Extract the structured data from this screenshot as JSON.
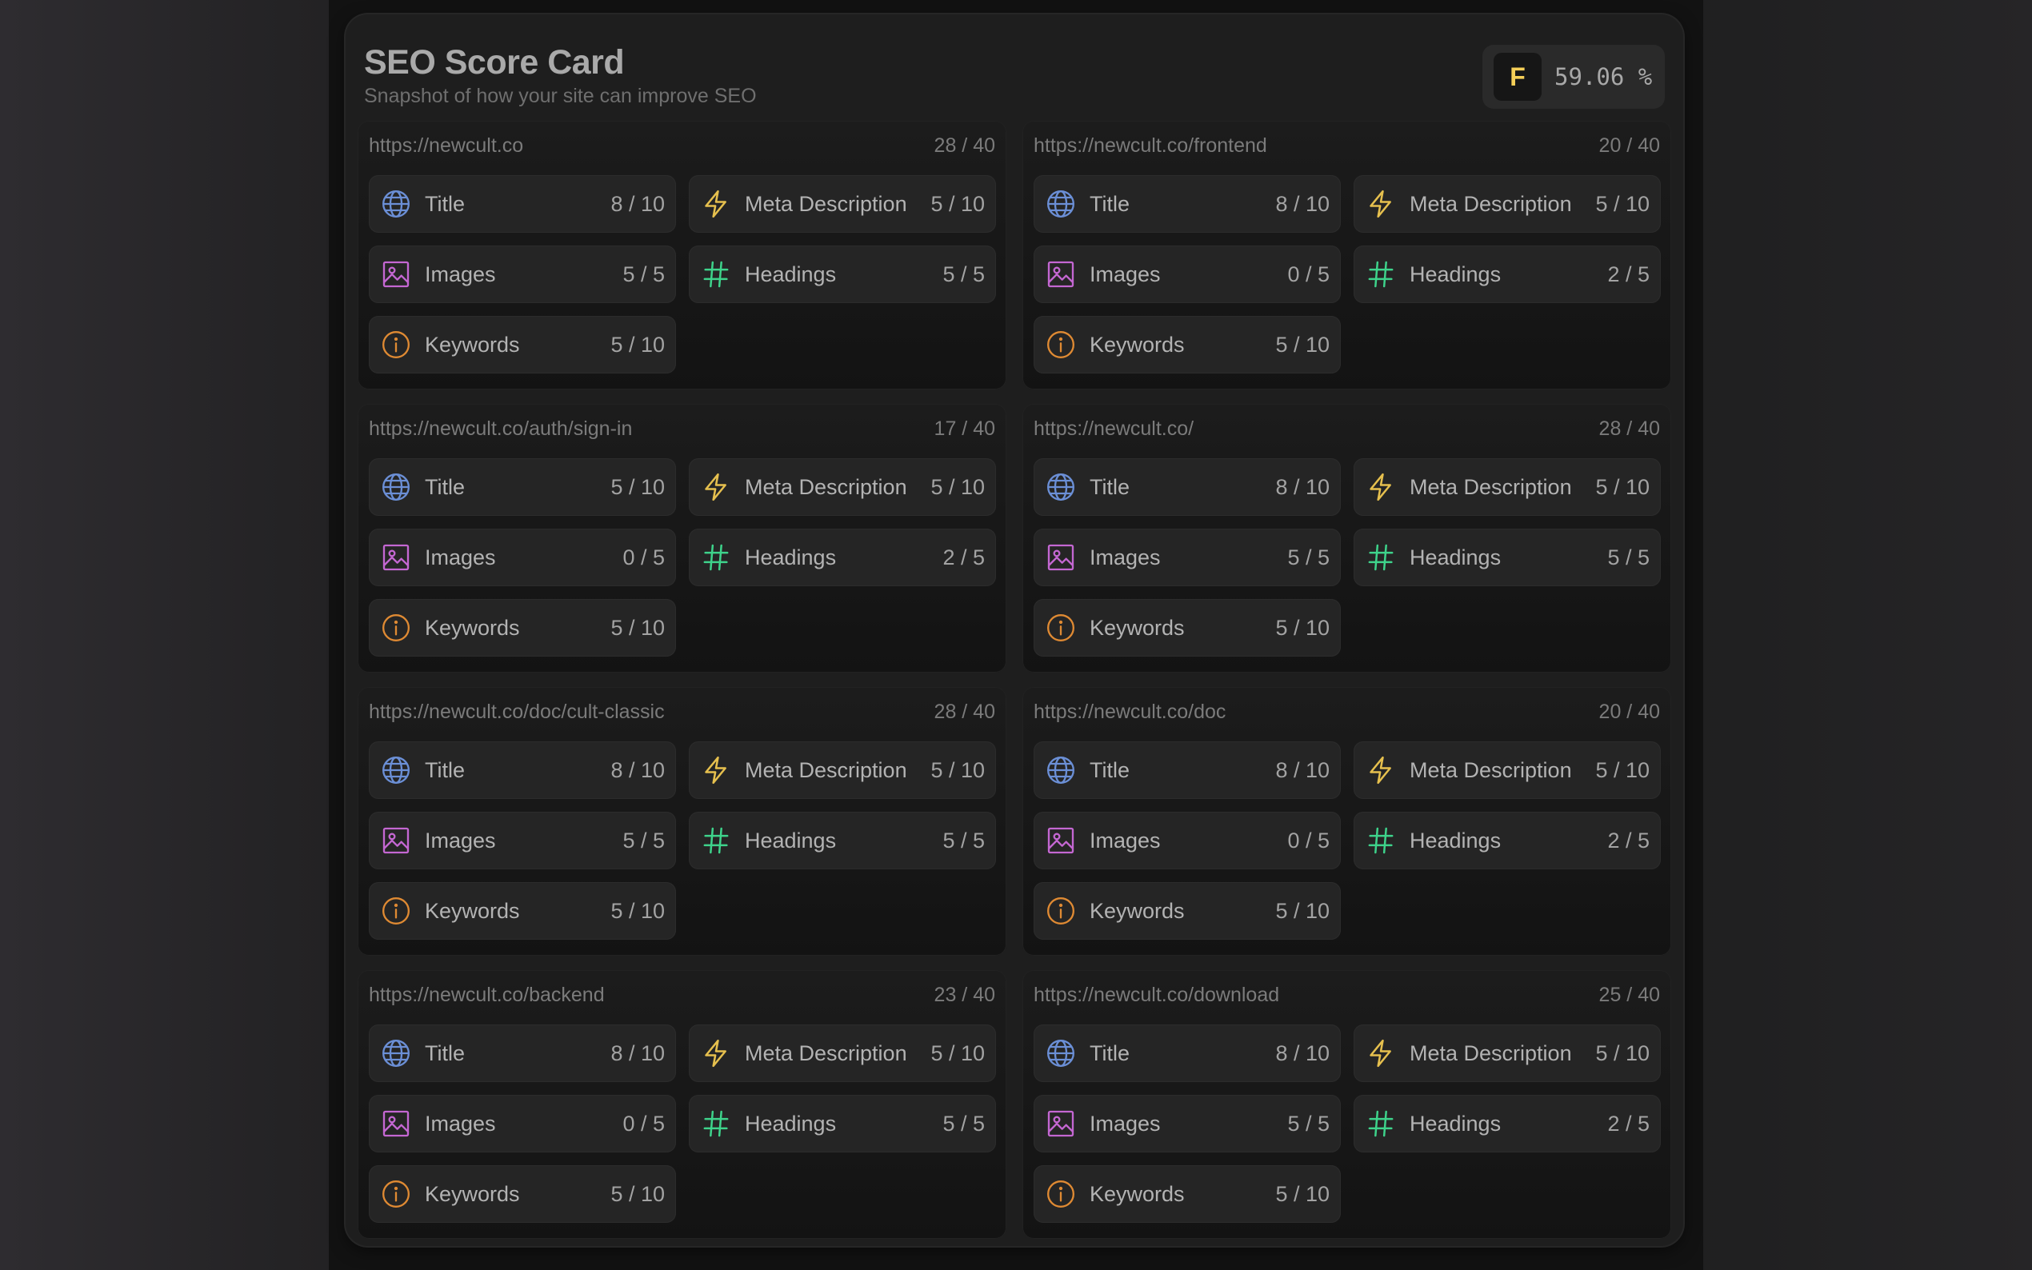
{
  "header": {
    "title": "SEO Score Card",
    "subtitle": "Snapshot of how your site can improve SEO",
    "grade": "F",
    "percentage": "59.06 %"
  },
  "labels": {
    "title": "Title",
    "meta": "Meta Description",
    "images": "Images",
    "headings": "Headings",
    "keywords": "Keywords"
  },
  "icons": {
    "title": "globe-icon",
    "meta": "lightning-icon",
    "images": "image-icon",
    "headings": "hash-icon",
    "keywords": "info-icon"
  },
  "colors": {
    "title_icon": "#6b8fd6",
    "meta_icon": "#e6c04e",
    "images_icon": "#c467d2",
    "headings_icon": "#3ed38b",
    "keywords_icon": "#df8a33",
    "grade_letter": "#f5cf58"
  },
  "pages": [
    {
      "url": "https://newcult.co",
      "total": "28 / 40",
      "title": "8 / 10",
      "meta": "5 / 10",
      "images": "5 / 5",
      "headings": "5 / 5",
      "keywords": "5 / 10"
    },
    {
      "url": "https://newcult.co/frontend",
      "total": "20 / 40",
      "title": "8 / 10",
      "meta": "5 / 10",
      "images": "0 / 5",
      "headings": "2 / 5",
      "keywords": "5 / 10"
    },
    {
      "url": "https://newcult.co/auth/sign-in",
      "total": "17 / 40",
      "title": "5 / 10",
      "meta": "5 / 10",
      "images": "0 / 5",
      "headings": "2 / 5",
      "keywords": "5 / 10"
    },
    {
      "url": "https://newcult.co/",
      "total": "28 / 40",
      "title": "8 / 10",
      "meta": "5 / 10",
      "images": "5 / 5",
      "headings": "5 / 5",
      "keywords": "5 / 10"
    },
    {
      "url": "https://newcult.co/doc/cult-classic",
      "total": "28 / 40",
      "title": "8 / 10",
      "meta": "5 / 10",
      "images": "5 / 5",
      "headings": "5 / 5",
      "keywords": "5 / 10"
    },
    {
      "url": "https://newcult.co/doc",
      "total": "20 / 40",
      "title": "8 / 10",
      "meta": "5 / 10",
      "images": "0 / 5",
      "headings": "2 / 5",
      "keywords": "5 / 10"
    },
    {
      "url": "https://newcult.co/backend",
      "total": "23 / 40",
      "title": "8 / 10",
      "meta": "5 / 10",
      "images": "0 / 5",
      "headings": "5 / 5",
      "keywords": "5 / 10"
    },
    {
      "url": "https://newcult.co/download",
      "total": "25 / 40",
      "title": "8 / 10",
      "meta": "5 / 10",
      "images": "5 / 5",
      "headings": "2 / 5",
      "keywords": "5 / 10"
    }
  ]
}
